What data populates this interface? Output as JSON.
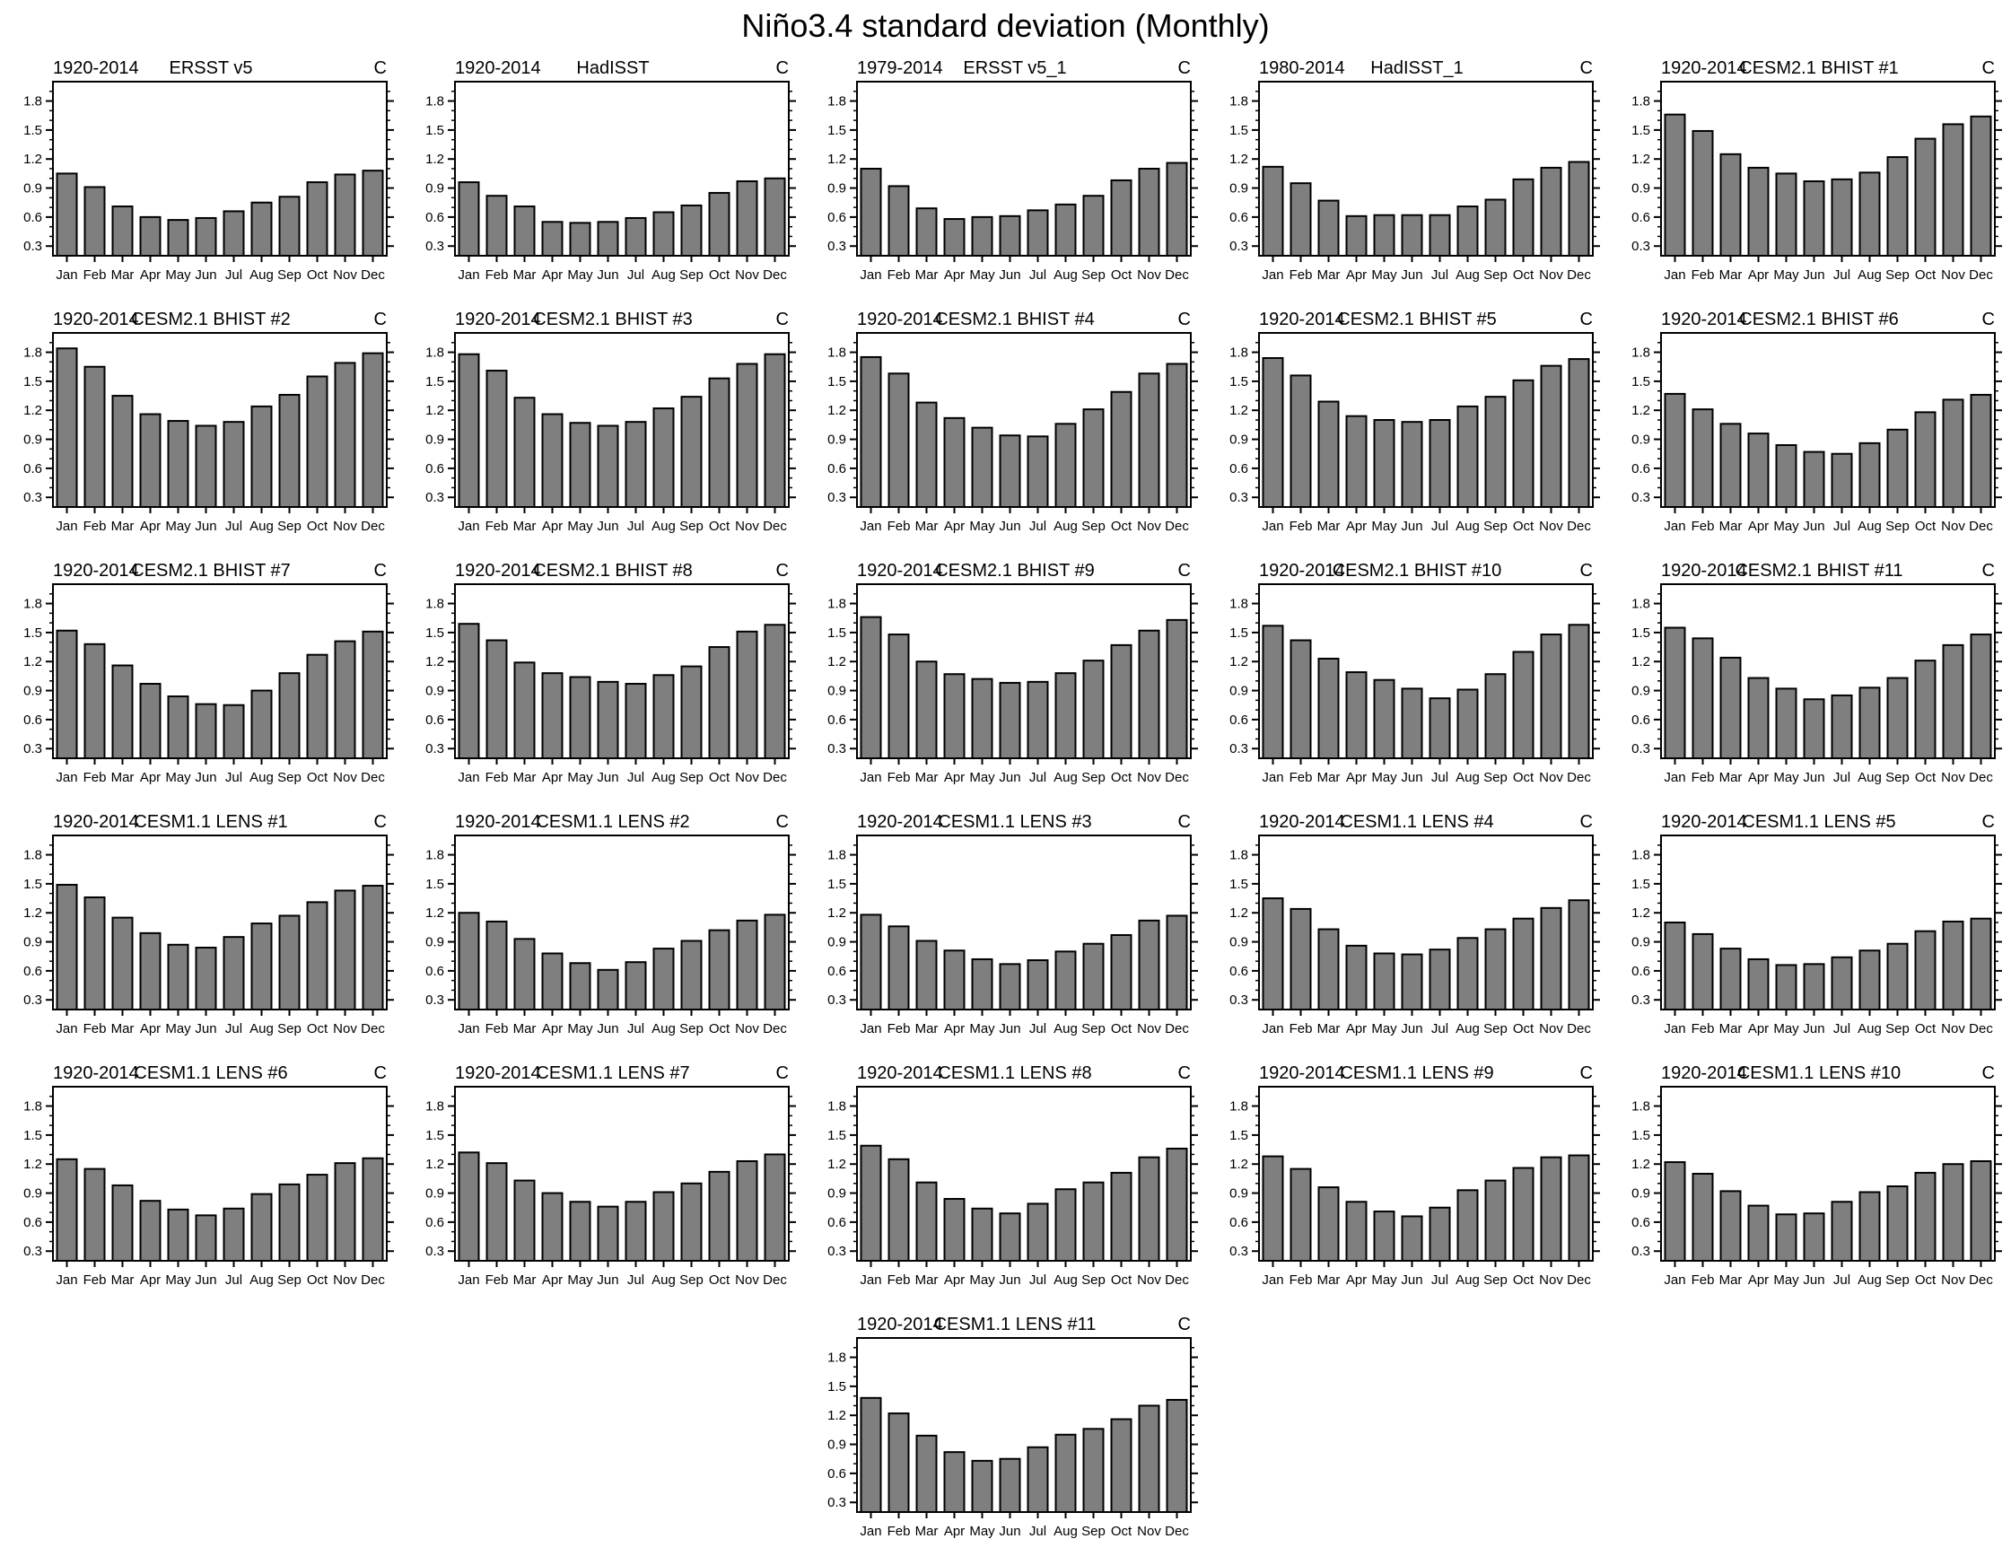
{
  "title": "Niño3.4 standard deviation (Monthly)",
  "unit_label": "C",
  "chart_data": {
    "type": "bar",
    "categories": [
      "Jan",
      "Feb",
      "Mar",
      "Apr",
      "May",
      "Jun",
      "Jul",
      "Aug",
      "Sep",
      "Oct",
      "Nov",
      "Dec"
    ],
    "ylim": [
      0.2,
      2.0
    ],
    "yticks": [
      0.3,
      0.6,
      0.9,
      1.2,
      1.5,
      1.8
    ],
    "ytick_labels": [
      "0.3",
      "0.6",
      "0.9",
      "1.2",
      "1.5",
      "1.8"
    ],
    "minor_tick_step": 0.1,
    "grid": false,
    "bar_color": "#7f7f7f",
    "bar_edge_color": "#000000",
    "panels": [
      {
        "period": "1920-2014",
        "title": "ERSST v5",
        "unit": "C",
        "values": [
          1.05,
          0.91,
          0.71,
          0.6,
          0.57,
          0.59,
          0.66,
          0.75,
          0.81,
          0.96,
          1.04,
          1.08
        ]
      },
      {
        "period": "1920-2014",
        "title": "HadISST",
        "unit": "C",
        "values": [
          0.96,
          0.82,
          0.71,
          0.55,
          0.54,
          0.55,
          0.59,
          0.65,
          0.72,
          0.85,
          0.97,
          1.0
        ]
      },
      {
        "period": "1979-2014",
        "title": "ERSST v5_1",
        "unit": "C",
        "values": [
          1.1,
          0.92,
          0.69,
          0.58,
          0.6,
          0.61,
          0.67,
          0.73,
          0.82,
          0.98,
          1.1,
          1.16
        ]
      },
      {
        "period": "1980-2014",
        "title": "HadISST_1",
        "unit": "C",
        "values": [
          1.12,
          0.95,
          0.77,
          0.61,
          0.62,
          0.62,
          0.62,
          0.71,
          0.78,
          0.99,
          1.11,
          1.17
        ]
      },
      {
        "period": "1920-2014",
        "title": "CESM2.1 BHIST #1",
        "unit": "C",
        "values": [
          1.66,
          1.49,
          1.25,
          1.11,
          1.05,
          0.97,
          0.99,
          1.06,
          1.22,
          1.41,
          1.56,
          1.64
        ]
      },
      {
        "period": "1920-2014",
        "title": "CESM2.1 BHIST #2",
        "unit": "C",
        "values": [
          1.84,
          1.65,
          1.35,
          1.16,
          1.09,
          1.04,
          1.08,
          1.24,
          1.36,
          1.55,
          1.69,
          1.79
        ]
      },
      {
        "period": "1920-2014",
        "title": "CESM2.1 BHIST #3",
        "unit": "C",
        "values": [
          1.78,
          1.61,
          1.33,
          1.16,
          1.07,
          1.04,
          1.08,
          1.22,
          1.34,
          1.53,
          1.68,
          1.78
        ]
      },
      {
        "period": "1920-2014",
        "title": "CESM2.1 BHIST #4",
        "unit": "C",
        "values": [
          1.75,
          1.58,
          1.28,
          1.12,
          1.02,
          0.94,
          0.93,
          1.06,
          1.21,
          1.39,
          1.58,
          1.68
        ]
      },
      {
        "period": "1920-2014",
        "title": "CESM2.1 BHIST #5",
        "unit": "C",
        "values": [
          1.74,
          1.56,
          1.29,
          1.14,
          1.1,
          1.08,
          1.1,
          1.24,
          1.34,
          1.51,
          1.66,
          1.73
        ]
      },
      {
        "period": "1920-2014",
        "title": "CESM2.1 BHIST #6",
        "unit": "C",
        "values": [
          1.37,
          1.21,
          1.06,
          0.96,
          0.84,
          0.77,
          0.75,
          0.86,
          1.0,
          1.18,
          1.31,
          1.36
        ]
      },
      {
        "period": "1920-2014",
        "title": "CESM2.1 BHIST #7",
        "unit": "C",
        "values": [
          1.52,
          1.38,
          1.16,
          0.97,
          0.84,
          0.76,
          0.75,
          0.9,
          1.08,
          1.27,
          1.41,
          1.51
        ]
      },
      {
        "period": "1920-2014",
        "title": "CESM2.1 BHIST #8",
        "unit": "C",
        "values": [
          1.59,
          1.42,
          1.19,
          1.08,
          1.04,
          0.99,
          0.97,
          1.06,
          1.15,
          1.35,
          1.51,
          1.58
        ]
      },
      {
        "period": "1920-2014",
        "title": "CESM2.1 BHIST #9",
        "unit": "C",
        "values": [
          1.66,
          1.48,
          1.2,
          1.07,
          1.02,
          0.98,
          0.99,
          1.08,
          1.21,
          1.37,
          1.52,
          1.63
        ]
      },
      {
        "period": "1920-2014",
        "title": "CESM2.1 BHIST #10",
        "unit": "C",
        "values": [
          1.57,
          1.42,
          1.23,
          1.09,
          1.01,
          0.92,
          0.82,
          0.91,
          1.07,
          1.3,
          1.48,
          1.58
        ]
      },
      {
        "period": "1920-2014",
        "title": "CESM2.1 BHIST #11",
        "unit": "C",
        "values": [
          1.55,
          1.44,
          1.24,
          1.03,
          0.92,
          0.81,
          0.85,
          0.93,
          1.03,
          1.21,
          1.37,
          1.48
        ]
      },
      {
        "period": "1920-2014",
        "title": "CESM1.1 LENS #1",
        "unit": "C",
        "values": [
          1.49,
          1.36,
          1.15,
          0.99,
          0.87,
          0.84,
          0.95,
          1.09,
          1.17,
          1.31,
          1.43,
          1.48
        ]
      },
      {
        "period": "1920-2014",
        "title": "CESM1.1 LENS #2",
        "unit": "C",
        "values": [
          1.2,
          1.11,
          0.93,
          0.78,
          0.68,
          0.61,
          0.69,
          0.83,
          0.91,
          1.02,
          1.12,
          1.18
        ]
      },
      {
        "period": "1920-2014",
        "title": "CESM1.1 LENS #3",
        "unit": "C",
        "values": [
          1.18,
          1.06,
          0.91,
          0.81,
          0.72,
          0.67,
          0.71,
          0.8,
          0.88,
          0.97,
          1.12,
          1.17
        ]
      },
      {
        "period": "1920-2014",
        "title": "CESM1.1 LENS #4",
        "unit": "C",
        "values": [
          1.35,
          1.24,
          1.03,
          0.86,
          0.78,
          0.77,
          0.82,
          0.94,
          1.03,
          1.14,
          1.25,
          1.33
        ]
      },
      {
        "period": "1920-2014",
        "title": "CESM1.1 LENS #5",
        "unit": "C",
        "values": [
          1.1,
          0.98,
          0.83,
          0.72,
          0.66,
          0.67,
          0.74,
          0.81,
          0.88,
          1.01,
          1.11,
          1.14
        ]
      },
      {
        "period": "1920-2014",
        "title": "CESM1.1 LENS #6",
        "unit": "C",
        "values": [
          1.25,
          1.15,
          0.98,
          0.82,
          0.73,
          0.67,
          0.74,
          0.89,
          0.99,
          1.09,
          1.21,
          1.26
        ]
      },
      {
        "period": "1920-2014",
        "title": "CESM1.1 LENS #7",
        "unit": "C",
        "values": [
          1.32,
          1.21,
          1.03,
          0.9,
          0.81,
          0.76,
          0.81,
          0.91,
          1.0,
          1.12,
          1.23,
          1.3
        ]
      },
      {
        "period": "1920-2014",
        "title": "CESM1.1 LENS #8",
        "unit": "C",
        "values": [
          1.39,
          1.25,
          1.01,
          0.84,
          0.74,
          0.69,
          0.79,
          0.94,
          1.01,
          1.11,
          1.27,
          1.36
        ]
      },
      {
        "period": "1920-2014",
        "title": "CESM1.1 LENS #9",
        "unit": "C",
        "values": [
          1.28,
          1.15,
          0.96,
          0.81,
          0.71,
          0.66,
          0.75,
          0.93,
          1.03,
          1.16,
          1.27,
          1.29
        ]
      },
      {
        "period": "1920-2014",
        "title": "CESM1.1 LENS #10",
        "unit": "C",
        "values": [
          1.22,
          1.1,
          0.92,
          0.77,
          0.68,
          0.69,
          0.81,
          0.91,
          0.97,
          1.11,
          1.2,
          1.23
        ]
      },
      {
        "period": "1920-2014",
        "title": "CESM1.1 LENS #11",
        "unit": "C",
        "values": [
          1.38,
          1.22,
          0.99,
          0.82,
          0.73,
          0.75,
          0.87,
          1.0,
          1.06,
          1.16,
          1.3,
          1.36
        ]
      }
    ]
  }
}
